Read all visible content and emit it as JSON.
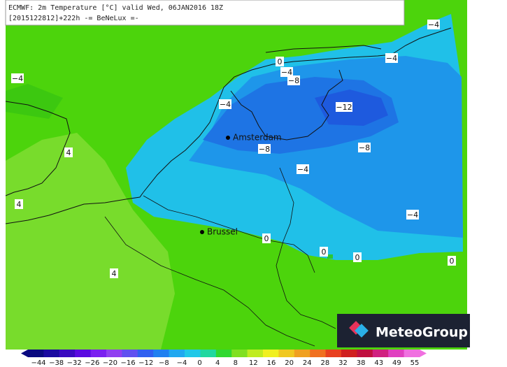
{
  "header": {
    "line1": "ECMWF: 2m Temperature [°C] valid Wed, 06JAN2016 18Z",
    "line2": "[2015122812]+222h -= BeNeLux =-"
  },
  "contour_labels": [
    "0",
    "−4",
    "−8",
    "−4",
    "−4",
    "−4",
    "−4",
    "−12",
    "−8",
    "−8",
    "−4",
    "4",
    "4",
    "−4",
    "0",
    "0",
    "0",
    "0",
    "4"
  ],
  "cities": [
    "Amsterdam",
    "Brussel"
  ],
  "colorbar": {
    "labels": [
      "−44",
      "−38",
      "−32",
      "−26",
      "−20",
      "−16",
      "−12",
      "−8",
      "−4",
      "0",
      "4",
      "8",
      "12",
      "16",
      "20",
      "24",
      "28",
      "32",
      "38",
      "43",
      "49",
      "55"
    ]
  },
  "logo": "MeteoGroup"
}
